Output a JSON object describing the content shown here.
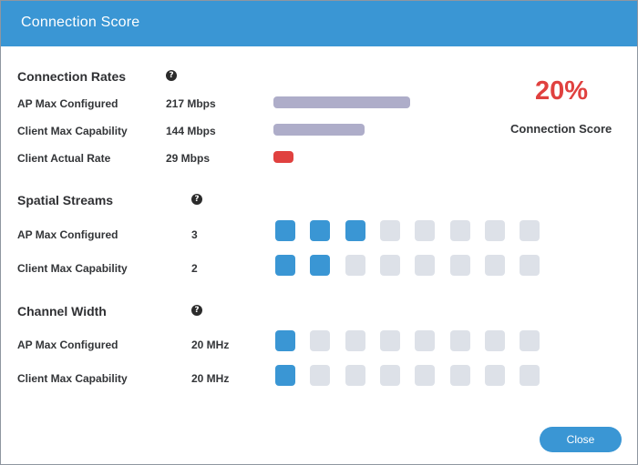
{
  "dialog": {
    "title": "Connection Score",
    "close_label": "Close"
  },
  "colors": {
    "header": "#3a96d4",
    "bar_gray": "#aeadc9",
    "bar_red": "#e0413f",
    "square_on": "#3a96d4",
    "square_off": "#dde1e8",
    "score": "#e0413f"
  },
  "score": {
    "value": "20%",
    "label": "Connection Score"
  },
  "help_icon_glyph": "?",
  "connection_rates": {
    "title": "Connection Rates",
    "max_mbps": 217,
    "rows": [
      {
        "label": "AP Max Configured",
        "value": "217 Mbps",
        "mbps": 217,
        "color": "gray"
      },
      {
        "label": "Client Max Capability",
        "value": "144 Mbps",
        "mbps": 144,
        "color": "gray"
      },
      {
        "label": "Client Actual Rate",
        "value": "29 Mbps",
        "mbps": 29,
        "color": "red"
      }
    ]
  },
  "spatial_streams": {
    "title": "Spatial Streams",
    "total": 8,
    "rows": [
      {
        "label": "AP Max Configured",
        "value": "3",
        "count": 3
      },
      {
        "label": "Client Max Capability",
        "value": "2",
        "count": 2
      }
    ]
  },
  "channel_width": {
    "title": "Channel Width",
    "total": 8,
    "rows": [
      {
        "label": "AP Max Configured",
        "value": "20 MHz",
        "count": 1
      },
      {
        "label": "Client Max Capability",
        "value": "20 MHz",
        "count": 1
      }
    ]
  }
}
